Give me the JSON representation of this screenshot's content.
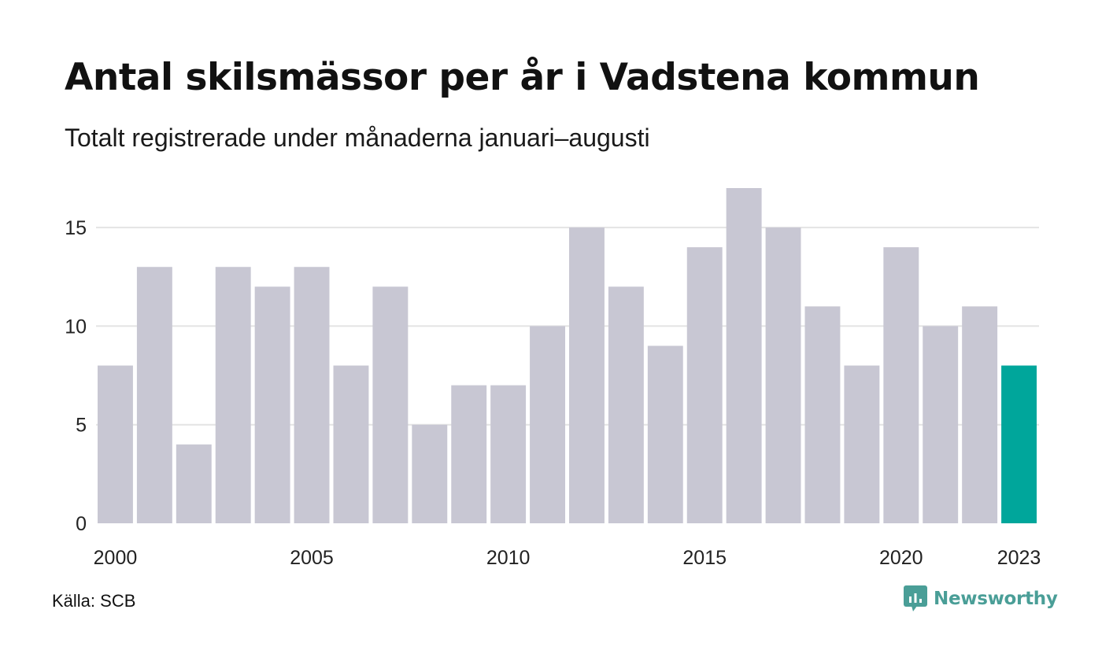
{
  "title": "Antal skilsmässor per år i Vadstena kommun",
  "subtitle": "Totalt registrerade under månaderna januari–augusti",
  "source": "Källa: SCB",
  "brand": {
    "name": "Newsworthy",
    "color": "#4a9e97"
  },
  "colors": {
    "bar": "#c8c7d3",
    "highlight": "#00a69b",
    "grid": "#e4e4e4"
  },
  "chart_data": {
    "type": "bar",
    "categories": [
      "2000",
      "2001",
      "2002",
      "2003",
      "2004",
      "2005",
      "2006",
      "2007",
      "2008",
      "2009",
      "2010",
      "2011",
      "2012",
      "2013",
      "2014",
      "2015",
      "2016",
      "2017",
      "2018",
      "2019",
      "2020",
      "2021",
      "2022",
      "2023"
    ],
    "values": [
      8,
      13,
      4,
      13,
      12,
      13,
      8,
      12,
      5,
      7,
      7,
      10,
      15,
      12,
      9,
      14,
      17,
      15,
      11,
      8,
      14,
      10,
      11,
      8
    ],
    "highlight_category": "2023",
    "x_tick_labels": [
      "2000",
      "2005",
      "2010",
      "2015",
      "2020",
      "2023"
    ],
    "y_ticks": [
      0,
      5,
      10,
      15
    ],
    "ylim": [
      0,
      17
    ],
    "grid": true,
    "legend": false
  }
}
